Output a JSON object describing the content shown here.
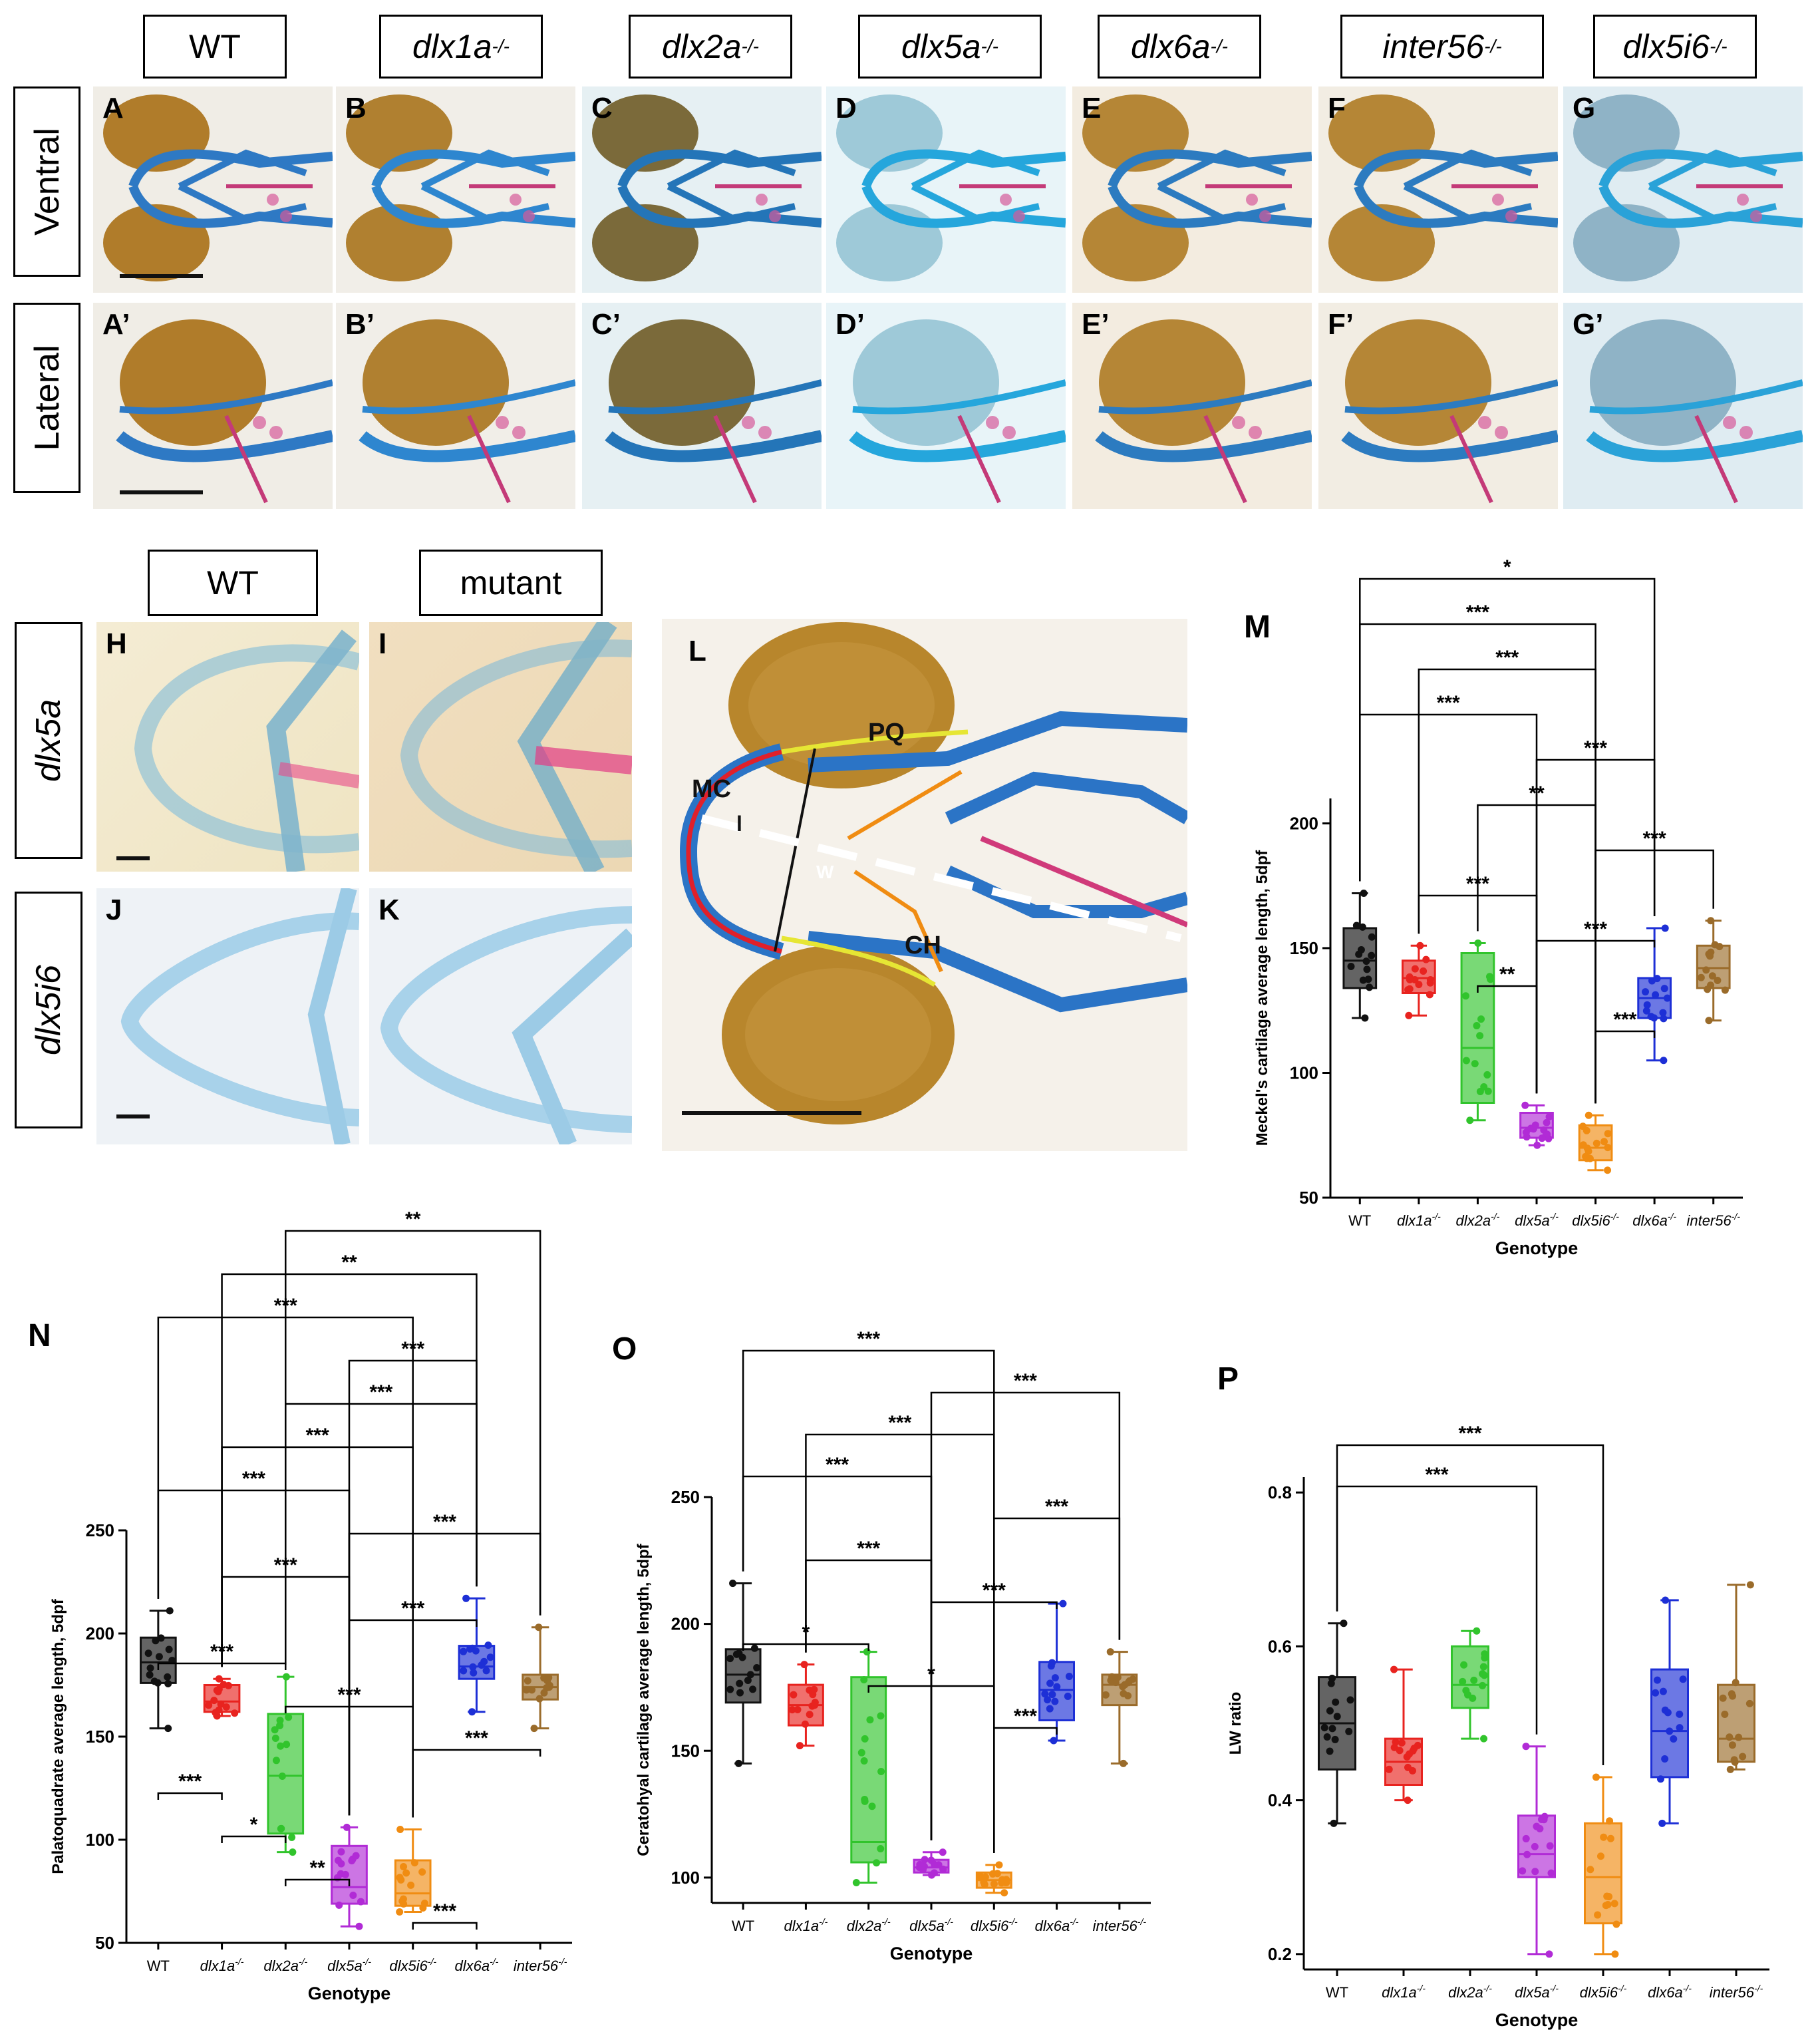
{
  "header": {
    "genotypes": [
      {
        "base": "WT",
        "sup": ""
      },
      {
        "base": "dlx1a",
        "sup": "-/-"
      },
      {
        "base": "dlx2a",
        "sup": "-/-"
      },
      {
        "base": "dlx5a",
        "sup": "-/-"
      },
      {
        "base": "dlx6a",
        "sup": "-/-"
      },
      {
        "base": "inter56",
        "sup": "-/-"
      },
      {
        "base": "dlx5i6",
        "sup": "-/-"
      }
    ],
    "rows": [
      "Ventral",
      "Lateral"
    ]
  },
  "panels_top": {
    "ventral": [
      "A",
      "B",
      "C",
      "D",
      "E",
      "F",
      "G"
    ],
    "lateral": [
      "A’",
      "B’",
      "C’",
      "D’",
      "E’",
      "F’",
      "G’"
    ]
  },
  "middle": {
    "col_wt": "WT",
    "col_mutant": "mutant",
    "row_dlx5a": "dlx5a",
    "row_dlx5i6": "dlx5i6",
    "panels": [
      "H",
      "I",
      "J",
      "K"
    ],
    "panel_L": "L",
    "l_labels": {
      "mc": "MC",
      "pq": "PQ",
      "ch": "CH",
      "l": "l",
      "w": "W"
    }
  },
  "colors": {
    "WT": "#111111",
    "dlx1a": "#e8231f",
    "dlx2a": "#31c42c",
    "dlx5a": "#b12bd6",
    "dlx5i6": "#f08c12",
    "dlx6a": "#1d2fd6",
    "inter56": "#9a6b2a"
  },
  "chart_data": [
    {
      "panel": "M",
      "type": "box",
      "ylabel": "Meckel's cartilage average length, 5dpf",
      "xlabel": "Genotype",
      "ylim": [
        50,
        210
      ],
      "yticks": [
        50,
        100,
        150,
        200
      ],
      "categories": [
        "WT",
        "dlx1a-/-",
        "dlx2a-/-",
        "dlx5a-/-",
        "dlx5i6-/-",
        "dlx6a-/-",
        "inter56-/-"
      ],
      "boxes": [
        {
          "min": 122,
          "q1": 134,
          "median": 145,
          "q3": 158,
          "max": 172
        },
        {
          "min": 123,
          "q1": 132,
          "median": 138,
          "q3": 145,
          "max": 151
        },
        {
          "min": 81,
          "q1": 88,
          "median": 110,
          "q3": 148,
          "max": 152
        },
        {
          "min": 71,
          "q1": 74,
          "median": 78,
          "q3": 84,
          "max": 87
        },
        {
          "min": 61,
          "q1": 65,
          "median": 70,
          "q3": 79,
          "max": 83
        },
        {
          "min": 105,
          "q1": 122,
          "median": 130,
          "q3": 138,
          "max": 158
        },
        {
          "min": 121,
          "q1": 134,
          "median": 142,
          "q3": 151,
          "max": 161
        }
      ],
      "significance": [
        {
          "a": 0,
          "b": 5,
          "label": "*"
        },
        {
          "a": 0,
          "b": 4,
          "label": "***"
        },
        {
          "a": 1,
          "b": 4,
          "label": "***"
        },
        {
          "a": 0,
          "b": 3,
          "label": "***"
        },
        {
          "a": 3,
          "b": 5,
          "label": "***"
        },
        {
          "a": 2,
          "b": 4,
          "label": "**"
        },
        {
          "a": 4,
          "b": 6,
          "label": "***"
        },
        {
          "a": 1,
          "b": 3,
          "label": "***"
        },
        {
          "a": 3,
          "b": 5,
          "label": "***"
        },
        {
          "a": 2,
          "b": 3,
          "label": "**"
        },
        {
          "a": 4,
          "b": 5,
          "label": "***"
        }
      ]
    },
    {
      "panel": "N",
      "type": "box",
      "ylabel": "Palatoquadrate average length, 5dpf",
      "xlabel": "Genotype",
      "ylim": [
        50,
        250
      ],
      "yticks": [
        50,
        100,
        150,
        200,
        250
      ],
      "categories": [
        "WT",
        "dlx1a-/-",
        "dlx2a-/-",
        "dlx5a-/-",
        "dlx5i6-/-",
        "dlx6a-/-",
        "inter56-/-"
      ],
      "boxes": [
        {
          "min": 154,
          "q1": 176,
          "median": 186,
          "q3": 198,
          "max": 211
        },
        {
          "min": 160,
          "q1": 162,
          "median": 167,
          "q3": 175,
          "max": 178
        },
        {
          "min": 94,
          "q1": 103,
          "median": 131,
          "q3": 161,
          "max": 179
        },
        {
          "min": 58,
          "q1": 69,
          "median": 77,
          "q3": 97,
          "max": 106
        },
        {
          "min": 65,
          "q1": 68,
          "median": 74,
          "q3": 90,
          "max": 105
        },
        {
          "min": 162,
          "q1": 178,
          "median": 184,
          "q3": 194,
          "max": 217
        },
        {
          "min": 154,
          "q1": 168,
          "median": 174,
          "q3": 180,
          "max": 203
        }
      ],
      "significance": [
        {
          "a": 2,
          "b": 6,
          "label": "**"
        },
        {
          "a": 1,
          "b": 5,
          "label": "**"
        },
        {
          "a": 0,
          "b": 4,
          "label": "***"
        },
        {
          "a": 3,
          "b": 5,
          "label": "***"
        },
        {
          "a": 2,
          "b": 5,
          "label": "***"
        },
        {
          "a": 1,
          "b": 4,
          "label": "***"
        },
        {
          "a": 0,
          "b": 3,
          "label": "***"
        },
        {
          "a": 3,
          "b": 6,
          "label": "***"
        },
        {
          "a": 1,
          "b": 3,
          "label": "***"
        },
        {
          "a": 3,
          "b": 5,
          "label": "***"
        },
        {
          "a": 0,
          "b": 2,
          "label": "***"
        },
        {
          "a": 2,
          "b": 4,
          "label": "***"
        },
        {
          "a": 4,
          "b": 6,
          "label": "***"
        },
        {
          "a": 0,
          "b": 1,
          "label": "***"
        },
        {
          "a": 1,
          "b": 2,
          "label": "*"
        },
        {
          "a": 2,
          "b": 3,
          "label": "**"
        },
        {
          "a": 4,
          "b": 5,
          "label": "***"
        }
      ]
    },
    {
      "panel": "O",
      "type": "box",
      "ylabel": "Ceratohyal cartilage average length, 5dpf",
      "xlabel": "Genotype",
      "ylim": [
        90,
        250
      ],
      "yticks": [
        100,
        150,
        200,
        250
      ],
      "categories": [
        "WT",
        "dlx1a-/-",
        "dlx2a-/-",
        "dlx5a-/-",
        "dlx5i6-/-",
        "dlx6a-/-",
        "inter56-/-"
      ],
      "boxes": [
        {
          "min": 145,
          "q1": 169,
          "median": 180,
          "q3": 190,
          "max": 216
        },
        {
          "min": 152,
          "q1": 160,
          "median": 168,
          "q3": 176,
          "max": 184
        },
        {
          "min": 98,
          "q1": 106,
          "median": 114,
          "q3": 179,
          "max": 189
        },
        {
          "min": 101,
          "q1": 102,
          "median": 104,
          "q3": 107,
          "max": 110
        },
        {
          "min": 94,
          "q1": 96,
          "median": 99,
          "q3": 102,
          "max": 105
        },
        {
          "min": 154,
          "q1": 162,
          "median": 174,
          "q3": 185,
          "max": 208
        },
        {
          "min": 145,
          "q1": 168,
          "median": 176,
          "q3": 180,
          "max": 189
        }
      ],
      "significance": [
        {
          "a": 0,
          "b": 4,
          "label": "***"
        },
        {
          "a": 3,
          "b": 6,
          "label": "***"
        },
        {
          "a": 1,
          "b": 4,
          "label": "***"
        },
        {
          "a": 0,
          "b": 3,
          "label": "***"
        },
        {
          "a": 4,
          "b": 6,
          "label": "***"
        },
        {
          "a": 1,
          "b": 3,
          "label": "***"
        },
        {
          "a": 3,
          "b": 5,
          "label": "***"
        },
        {
          "a": 0,
          "b": 2,
          "label": "*"
        },
        {
          "a": 2,
          "b": 4,
          "label": "*"
        },
        {
          "a": 4,
          "b": 5,
          "label": "***"
        }
      ]
    },
    {
      "panel": "P",
      "type": "box",
      "ylabel": "LW ratio",
      "xlabel": "Genotype",
      "ylim": [
        0.18,
        0.82
      ],
      "yticks": [
        0.2,
        0.4,
        0.6,
        0.8
      ],
      "categories": [
        "WT",
        "dlx1a-/-",
        "dlx2a-/-",
        "dlx5a-/-",
        "dlx5i6-/-",
        "dlx6a-/-",
        "inter56-/-"
      ],
      "boxes": [
        {
          "min": 0.37,
          "q1": 0.44,
          "median": 0.5,
          "q3": 0.56,
          "max": 0.63
        },
        {
          "min": 0.4,
          "q1": 0.42,
          "median": 0.45,
          "q3": 0.48,
          "max": 0.57
        },
        {
          "min": 0.48,
          "q1": 0.52,
          "median": 0.55,
          "q3": 0.6,
          "max": 0.62
        },
        {
          "min": 0.2,
          "q1": 0.3,
          "median": 0.33,
          "q3": 0.38,
          "max": 0.47
        },
        {
          "min": 0.2,
          "q1": 0.24,
          "median": 0.3,
          "q3": 0.37,
          "max": 0.43
        },
        {
          "min": 0.37,
          "q1": 0.43,
          "median": 0.49,
          "q3": 0.57,
          "max": 0.66
        },
        {
          "min": 0.44,
          "q1": 0.45,
          "median": 0.48,
          "q3": 0.55,
          "max": 0.68
        }
      ],
      "significance": [
        {
          "a": 0,
          "b": 4,
          "label": "***"
        },
        {
          "a": 0,
          "b": 3,
          "label": "***"
        }
      ]
    }
  ]
}
